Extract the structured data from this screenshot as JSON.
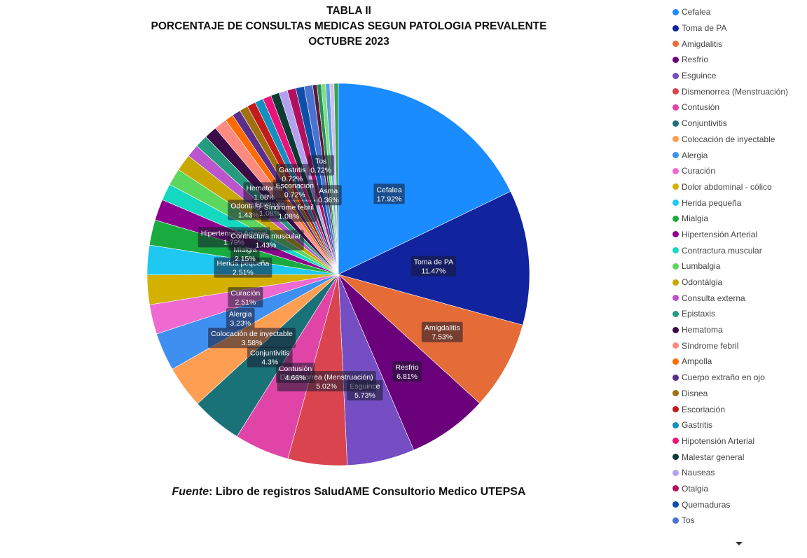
{
  "title_lines": [
    "TABLA II",
    "PORCENTAJE DE CONSULTAS MEDICAS SEGUN PATOLOGIA PREVALENTE",
    "OCTUBRE 2023"
  ],
  "source": {
    "label": "Fuente",
    "text": ": Libro de registros SaludAME Consultorio Medico UTEPSA"
  },
  "chart_data": {
    "type": "pie",
    "title": "TABLA II PORCENTAJE DE CONSULTAS MEDICAS SEGUN PATOLOGIA PREVALENTE OCTUBRE 2023",
    "legend_position": "right",
    "slices": [
      {
        "label": "Cefalea",
        "value": 17.92,
        "text": "17.92%",
        "color": "#1a8cff"
      },
      {
        "label": "Toma de PA",
        "value": 11.47,
        "text": "11.47%",
        "color": "#12239e"
      },
      {
        "label": "Amigdalitis",
        "value": 7.53,
        "text": "7.53%",
        "color": "#e66c37"
      },
      {
        "label": "Resfrio",
        "value": 6.81,
        "text": "6.81%",
        "color": "#6b007b"
      },
      {
        "label": "Esguince",
        "value": 5.73,
        "text": "5.73%",
        "color": "#744ec2"
      },
      {
        "label": "Dismenorrea (Menstruación)",
        "value": 5.02,
        "text": "5.02%",
        "color": "#d9444e"
      },
      {
        "label": "Contusión",
        "value": 4.66,
        "text": "4.66%",
        "color": "#e044a7"
      },
      {
        "label": "Conjuntivitis",
        "value": 4.3,
        "text": "4.3%",
        "color": "#197278"
      },
      {
        "label": "Colocación de inyectable",
        "value": 3.58,
        "text": "3.58%",
        "color": "#fd9e52"
      },
      {
        "label": "Alergia",
        "value": 3.23,
        "text": "3.23%",
        "color": "#3f8ff0"
      },
      {
        "label": "Curación",
        "value": 2.51,
        "text": "2.51%",
        "color": "#ee6ad0"
      },
      {
        "label": "Dolor abdominal - cólico",
        "value": 2.51,
        "text": "",
        "color": "#d4b000"
      },
      {
        "label": "Herida pequeña",
        "value": 2.51,
        "text": "2.51%",
        "color": "#1ec8f0"
      },
      {
        "label": "Mialgia",
        "value": 2.15,
        "text": "2.15%",
        "color": "#1aab40"
      },
      {
        "label": "Hipertensión Arterial",
        "value": 1.79,
        "text": "1.79%",
        "color": "#8d008d"
      },
      {
        "label": "Contractura muscular",
        "value": 1.43,
        "text": "1.43%",
        "color": "#15d8c0"
      },
      {
        "label": "Lumbalgia",
        "value": 1.43,
        "text": "",
        "color": "#5cd65c"
      },
      {
        "label": "Odontálgia",
        "value": 1.43,
        "text": "1.43%",
        "color": "#c8a800"
      },
      {
        "label": "Consulta externa",
        "value": 1.08,
        "text": "",
        "color": "#bb55cc"
      },
      {
        "label": "Epistaxis",
        "value": 1.08,
        "text": "1.08%",
        "color": "#249b7e"
      },
      {
        "label": "Hematoma",
        "value": 1.08,
        "text": "1.08%",
        "color": "#3d0b47"
      },
      {
        "label": "Síndrome febril",
        "value": 1.08,
        "text": "1.08%",
        "color": "#ff8a80"
      },
      {
        "label": "Ampolla",
        "value": 0.72,
        "text": "",
        "color": "#ff6a00"
      },
      {
        "label": "Cuerpo extraño en ojo",
        "value": 0.72,
        "text": "",
        "color": "#5a2e8a"
      },
      {
        "label": "Disnea",
        "value": 0.72,
        "text": "",
        "color": "#a07010"
      },
      {
        "label": "Escoriación",
        "value": 0.72,
        "text": "0.72%",
        "color": "#c41a1a"
      },
      {
        "label": "Gastritis",
        "value": 0.72,
        "text": "0.72%",
        "color": "#168ec0"
      },
      {
        "label": "Hipotensión Arterial",
        "value": 0.72,
        "text": "",
        "color": "#e8147a"
      },
      {
        "label": "Malestar general",
        "value": 0.72,
        "text": "",
        "color": "#0c3b33"
      },
      {
        "label": "Nauseas",
        "value": 0.72,
        "text": "",
        "color": "#b3a0f0"
      },
      {
        "label": "Otalgia",
        "value": 0.72,
        "text": "",
        "color": "#b0105e"
      },
      {
        "label": "Quemaduras",
        "value": 0.72,
        "text": "",
        "color": "#0d4fa8"
      },
      {
        "label": "Tos",
        "value": 0.72,
        "text": "0.72%",
        "color": "#4a72d0"
      },
      {
        "label": "Asma",
        "value": 0.36,
        "text": "0.36%",
        "color": "#5a1a3a"
      },
      {
        "label": "",
        "value": 0.36,
        "text": "",
        "color": "#2a8f5a"
      },
      {
        "label": "",
        "value": 0.36,
        "text": "",
        "color": "#7ee07e"
      },
      {
        "label": "",
        "value": 0.36,
        "text": "",
        "color": "#5aa0e0"
      },
      {
        "label": "",
        "value": 0.36,
        "text": "",
        "color": "#d0c0f0"
      },
      {
        "label": "",
        "value": 0.36,
        "text": "",
        "color": "#3aa050"
      }
    ]
  }
}
